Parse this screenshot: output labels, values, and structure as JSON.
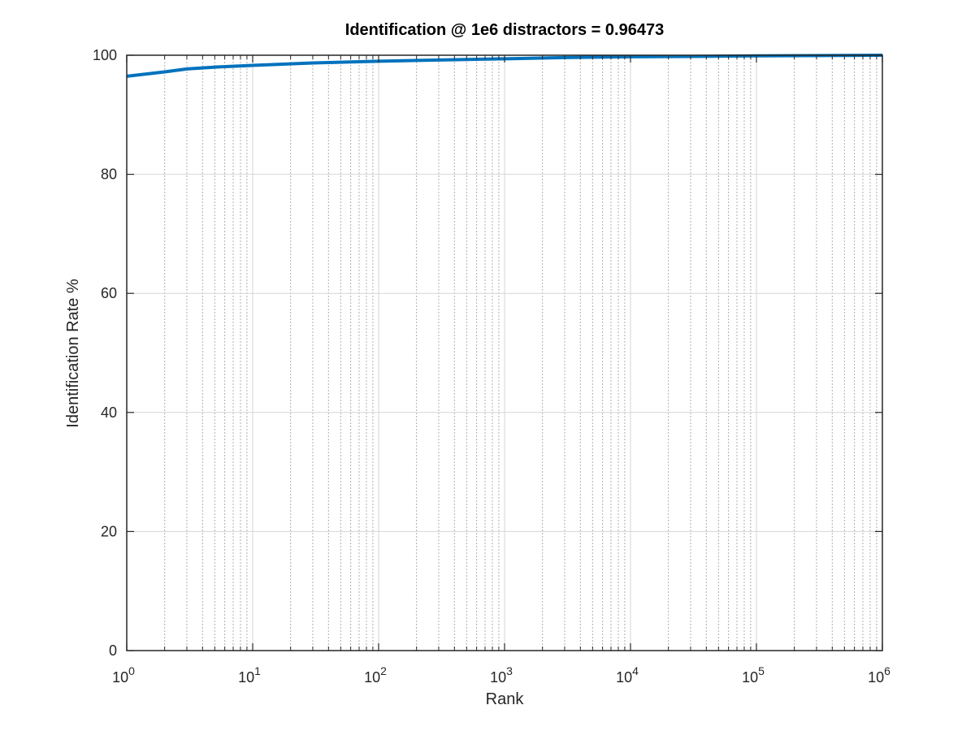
{
  "chart_data": {
    "type": "line",
    "title": "Identification @ 1e6 distractors = 0.96473",
    "xlabel": "Rank",
    "ylabel": "Identification Rate %",
    "x_scale": "log",
    "xlim": [
      1,
      1000000
    ],
    "ylim": [
      0,
      100
    ],
    "x_ticks": [
      1,
      10,
      100,
      1000,
      10000,
      100000,
      1000000
    ],
    "x_tick_base": "10",
    "x_tick_exponents": [
      "0",
      "1",
      "2",
      "3",
      "4",
      "5",
      "6"
    ],
    "y_ticks": [
      0,
      20,
      40,
      60,
      80,
      100
    ],
    "y_tick_labels": [
      "0",
      "20",
      "40",
      "60",
      "80",
      "100"
    ],
    "grid": true,
    "minor_grid_x": true,
    "series": [
      {
        "color": "#0072BD",
        "x": [
          1,
          2,
          3,
          5,
          10,
          30,
          100,
          300,
          1000,
          3000,
          10000,
          30000,
          100000,
          1000000
        ],
        "y": [
          96.47,
          97.2,
          97.7,
          98.0,
          98.3,
          98.7,
          99.0,
          99.2,
          99.4,
          99.6,
          99.75,
          99.8,
          99.9,
          100
        ]
      }
    ]
  }
}
